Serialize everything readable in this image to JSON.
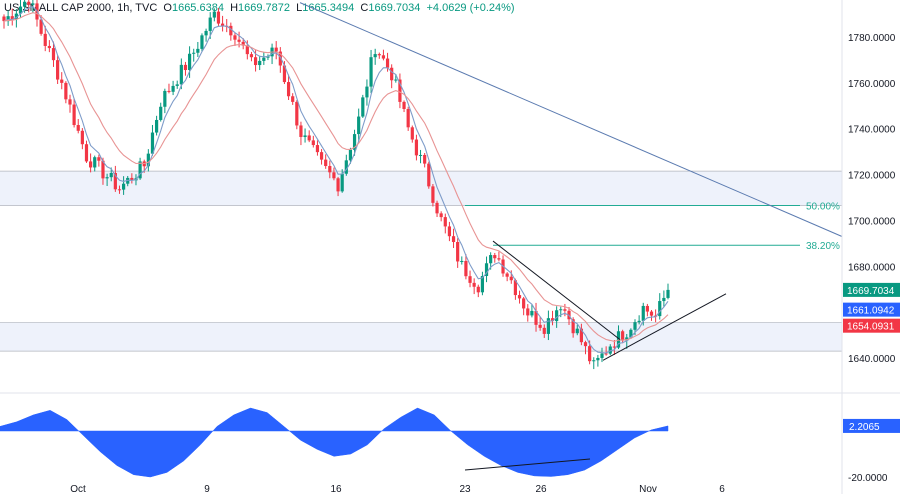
{
  "header": {
    "symbol": "US SMALL CAP 2000, 1h, TVC",
    "o_label": "O",
    "o_value": "1665.6384",
    "h_label": "H",
    "h_value": "1669.7872",
    "l_label": "L",
    "l_value": "1665.3494",
    "c_label": "C",
    "c_value": "1669.7034",
    "change": "+4.0629 (+0.24%)"
  },
  "colors": {
    "up": "#089981",
    "down": "#f23645",
    "fast_ma": "#7e9cc9",
    "slow_ma": "#e89494",
    "oscillator": "#2962ff",
    "trendline": "#5b7bb0",
    "fib": "#22ab94",
    "zone": "#eef2fb"
  },
  "chart_data": [
    {
      "type": "candlestick",
      "y_ticks": [
        "1780.0000",
        "1760.0000",
        "1740.0000",
        "1720.0000",
        "1700.0000",
        "1680.0000",
        "1660.0000",
        "1640.0000"
      ],
      "y_tick_values": [
        1780,
        1760,
        1740,
        1720,
        1700,
        1680,
        1660,
        1640
      ],
      "ylim": [
        1628,
        1795
      ],
      "x_ticks": [
        "Oct",
        "9",
        "16",
        "23",
        "26",
        "Nov",
        "6"
      ],
      "price_tags": [
        {
          "label": "1669.7034",
          "value": 1669.7034,
          "color": "#089981"
        },
        {
          "label": "1661.0942",
          "value": 1661.0942,
          "color": "#2962ff"
        },
        {
          "label": "1654.0931",
          "value": 1654.0931,
          "color": "#f23645"
        }
      ],
      "fib_levels": [
        {
          "label": "50.00%",
          "value": 1706.5
        },
        {
          "label": "38.20%",
          "value": 1689.2
        }
      ],
      "zones": [
        {
          "from": 1706.5,
          "to": 1721.5
        },
        {
          "from": 1643,
          "to": 1655.5
        }
      ],
      "anchors": [
        [
          0,
          1787
        ],
        [
          6,
          1797
        ],
        [
          9,
          1782
        ],
        [
          14,
          1760
        ],
        [
          20,
          1728
        ],
        [
          28,
          1714
        ],
        [
          34,
          1724
        ],
        [
          38,
          1752
        ],
        [
          45,
          1770
        ],
        [
          51,
          1790
        ],
        [
          56,
          1782
        ],
        [
          60,
          1768
        ],
        [
          66,
          1774
        ],
        [
          72,
          1738
        ],
        [
          77,
          1724
        ],
        [
          81,
          1716
        ],
        [
          86,
          1744
        ],
        [
          90,
          1776
        ],
        [
          94,
          1764
        ],
        [
          98,
          1740
        ],
        [
          102,
          1722
        ],
        [
          106,
          1700
        ],
        [
          111,
          1680
        ],
        [
          115,
          1672
        ],
        [
          119,
          1686
        ],
        [
          123,
          1674
        ],
        [
          127,
          1660
        ],
        [
          131,
          1654
        ],
        [
          135,
          1664
        ],
        [
          139,
          1651
        ],
        [
          143,
          1636
        ],
        [
          147,
          1646
        ],
        [
          151,
          1652
        ],
        [
          155,
          1662
        ],
        [
          158,
          1658
        ],
        [
          161,
          1670
        ]
      ],
      "candle_count": 162
    },
    {
      "type": "area",
      "y_ticks": [
        "2.2065",
        "-20.0000"
      ],
      "current_label": "2.2065",
      "current_value": 2.2065,
      "ylim": [
        -22,
        12
      ],
      "values": [
        2,
        4,
        7,
        9,
        5,
        -2,
        -9,
        -15,
        -19,
        -20,
        -18,
        -13,
        -6,
        2,
        7,
        10,
        8,
        2,
        -4,
        -8,
        -11,
        -10,
        -6,
        1,
        6,
        10,
        7,
        0,
        -6,
        -11,
        -15,
        -18,
        -19.5,
        -19.8,
        -19,
        -17,
        -13,
        -8,
        -3,
        0.5,
        2.2065
      ]
    }
  ]
}
